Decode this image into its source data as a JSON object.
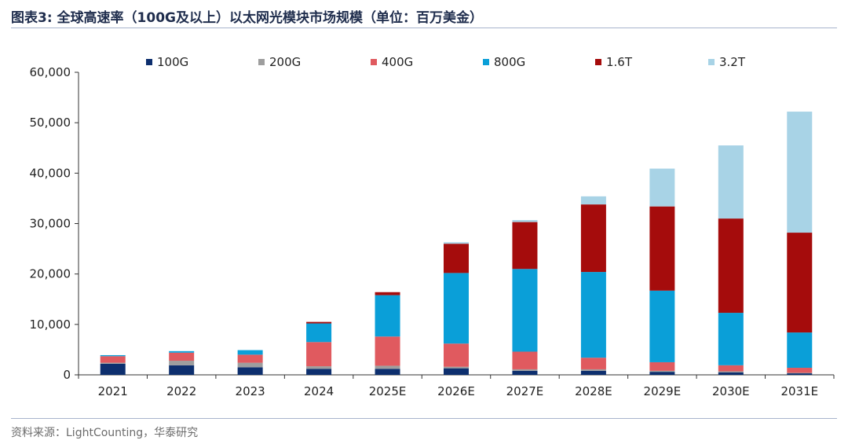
{
  "title": "图表3:  全球高速率（100G及以上）以太网光模块市场规模（单位：百万美金）",
  "source": "资料来源：LightCounting，华泰研究",
  "chart_data": {
    "type": "bar",
    "stacked": true,
    "categories": [
      "2021",
      "2022",
      "2023",
      "2024",
      "2025E",
      "2026E",
      "2027E",
      "2028E",
      "2029E",
      "2030E",
      "2031E"
    ],
    "ylim": [
      0,
      60000
    ],
    "yticks": [
      "0",
      "10,000",
      "20,000",
      "30,000",
      "40,000",
      "50,000",
      "60,000"
    ],
    "legend_position": "top",
    "series": [
      {
        "name": "100G",
        "color": "#0d2f6e",
        "values": [
          2200,
          1900,
          1500,
          1200,
          1200,
          1300,
          800,
          800,
          600,
          500,
          300
        ]
      },
      {
        "name": "200G",
        "color": "#9e9e9e",
        "values": [
          200,
          900,
          900,
          500,
          600,
          300,
          300,
          300,
          200,
          200,
          100
        ]
      },
      {
        "name": "400G",
        "color": "#e05a5f",
        "values": [
          1300,
          1600,
          1600,
          4800,
          5800,
          4600,
          3500,
          2300,
          1700,
          1200,
          1000
        ]
      },
      {
        "name": "800G",
        "color": "#0a9fd8",
        "values": [
          200,
          300,
          900,
          3700,
          8200,
          14000,
          16400,
          17000,
          14200,
          10400,
          7000
        ]
      },
      {
        "name": "1.6T",
        "color": "#a50c0c",
        "values": [
          0,
          0,
          0,
          300,
          600,
          5800,
          9300,
          13400,
          16700,
          18700,
          19800
        ]
      },
      {
        "name": "3.2T",
        "color": "#a8d3e6",
        "values": [
          0,
          0,
          0,
          0,
          0,
          300,
          400,
          1600,
          7500,
          14500,
          24000
        ]
      }
    ]
  }
}
